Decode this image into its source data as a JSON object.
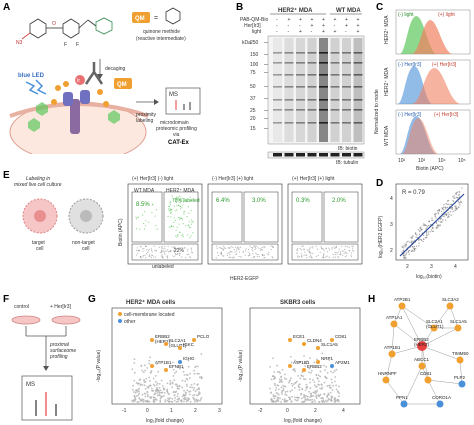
{
  "panels": {
    "A": {
      "letter": "A",
      "qm_box": "QM",
      "qm_eq": "=",
      "quinone_methide": "quinone methide",
      "reactive_intermediate": "(reactive intermediate)",
      "decaging": "decaging",
      "blue_led": "blue LED",
      "proximity_labeling": "proximity\nlabeling",
      "ms": "MS",
      "profiling": "microdomain\nproteomic profiling\nvia",
      "catex": "CAT-Ex",
      "f1": "F",
      "f2": "F",
      "n3": "N3",
      "o": "O",
      "ir": "Ir",
      "qm_label": "QM"
    },
    "B": {
      "letter": "B",
      "col_her2": "HER2⁺ MDA",
      "col_wt": "WT MDA",
      "row_probe": "PAB-QM-Bio",
      "row_ir": "Her[Ir3]",
      "row_light": "light",
      "signs_probe": [
        "-",
        "+",
        "+",
        "+",
        "+",
        "+",
        "+",
        "+"
      ],
      "signs_ir": [
        "-",
        "-",
        "-",
        "+",
        "+",
        "-",
        "+",
        "+"
      ],
      "signs_light": [
        "-",
        "-",
        "+",
        "-",
        "+",
        "+",
        "-",
        "+"
      ],
      "kda_label": "kDa",
      "mw": [
        "250",
        "150",
        "100",
        "75",
        "50",
        "37",
        "25",
        "20",
        "15"
      ],
      "ib_biotin": "IB: biotin",
      "ib_tubulin": "IB: tubulin"
    },
    "C": {
      "letter": "C",
      "rows": [
        {
          "name": "HER2⁺ MDA",
          "label1": "(-) light",
          "label2": "(+) light"
        },
        {
          "name": "HER2⁺ MDA",
          "label1": "(-) Her[Ir3]",
          "label2": "(+) Her[Ir3]"
        },
        {
          "name": "WT MDA",
          "label1": "(-) Her[Ir3]",
          "label2": "(+) Her[Ir3]"
        }
      ],
      "ylabel": "Normalized to mode",
      "xlabel": "Biotin (APC)",
      "ticks": [
        "10²",
        "10³",
        "10⁴",
        "10⁵"
      ]
    },
    "D": {
      "letter": "D",
      "r_label": "R = 0.79",
      "ylabel": "log₁₀(HER2 EGFP)",
      "xlabel": "log₁₀(biotin)",
      "xticks": [
        "2",
        "3",
        "4"
      ],
      "yticks": [
        "2",
        "3",
        "4"
      ]
    },
    "E": {
      "letter": "E",
      "title": "Labeling in\nmixed live cell culture",
      "target": "target\ncell",
      "nontarget": "non-target\ncell",
      "headers": [
        "(+) Her[Ir3]  (-) light",
        "(-) Her[Ir3]  (+) light",
        "(+) Her[Ir3]  (+) light"
      ],
      "wt_mda": "WT MDA",
      "her2_mda": "HER2⁺ MDA",
      "p1": "8.5%",
      "p1b": "78% labeled",
      "p1c": "22%",
      "unlabeled": "unlabeled",
      "p2": "6.4%",
      "p3": "3.0%",
      "p4": "0.3%",
      "p5": "2.0%",
      "ylabel": "Biotin (APC)",
      "xlabel": "HER2-EGFP"
    },
    "F": {
      "letter": "F",
      "control": "control",
      "her_ir": "+ Her[Ir3]",
      "proximal": "proximal\nsurfaceome\nprofiling",
      "ms": "MS"
    },
    "G": {
      "letter": "G",
      "left_title": "HER2⁺ MDA cells",
      "right_title": "SKBR3 cells",
      "legend_membrane": "cell-membrane located",
      "legend_other": "other",
      "ylabel": "-log₁₀(P value)",
      "xlabel": "log₂(fold change)",
      "left_xticks": [
        "-1",
        "0",
        "1",
        "2",
        "3"
      ],
      "right_xticks": [
        "-2",
        "0",
        "2",
        "4"
      ],
      "left_labels": [
        "ERBB2\n(HER2)",
        "SLC2A1\n(GLUT1)",
        "IGKC",
        "PCLO",
        "ATP1B1",
        "EFNB1",
        "IGHG"
      ],
      "right_labels": [
        "ECE1",
        "CLDN4",
        "SLC1A5",
        "CD81",
        "ATP1B1",
        "ERBB2",
        "NRP1",
        "AP2M1"
      ]
    },
    "H": {
      "letter": "H",
      "nodes": [
        "ATP2B1",
        "SLC3A2",
        "ATP1A1",
        "SLC2A1\n(GLUT1)",
        "SLC1A5",
        "ERBB2\n(HER2)",
        "ATP1B1",
        "ABCC1",
        "HNRNPF",
        "CD81",
        "TIMM50",
        "PLP2",
        "PPN1",
        "CORO1A"
      ]
    }
  },
  "colors": {
    "orange": "#f0a030",
    "blue": "#4a90d9",
    "green": "#5cc85c",
    "red": "#e84040",
    "gray": "#b0b0b0",
    "pink": "#f6c6c6"
  }
}
